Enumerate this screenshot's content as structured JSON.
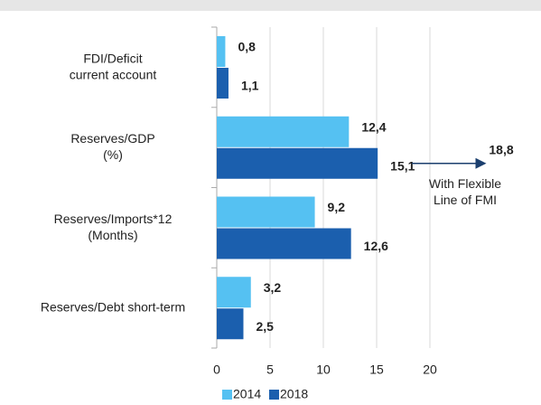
{
  "chart_data": {
    "type": "bar",
    "orientation": "horizontal",
    "categories": [
      "FDI/Deficit\ncurrent account",
      "Reserves/GDP\n(%)",
      "Reserves/Imports*12\n(Months)",
      "Reserves/Debt short-term"
    ],
    "series": [
      {
        "name": "2014",
        "color": "#55c1f2",
        "values": [
          0.8,
          12.4,
          9.2,
          3.2
        ],
        "value_labels": [
          "0,8",
          "12,4",
          "9,2",
          "3,2"
        ]
      },
      {
        "name": "2018",
        "color": "#1b5fae",
        "values": [
          1.1,
          15.1,
          12.6,
          2.5
        ],
        "value_labels": [
          "1,1",
          "15,1",
          "12,6",
          "2,5"
        ]
      }
    ],
    "xlim": [
      0,
      25
    ],
    "xticks": [
      0,
      5,
      10,
      15,
      20
    ],
    "grid": true,
    "legend": "bottom",
    "annotations": [
      {
        "label": "18,8",
        "text": "With Flexible\nLine of FMI"
      }
    ]
  }
}
